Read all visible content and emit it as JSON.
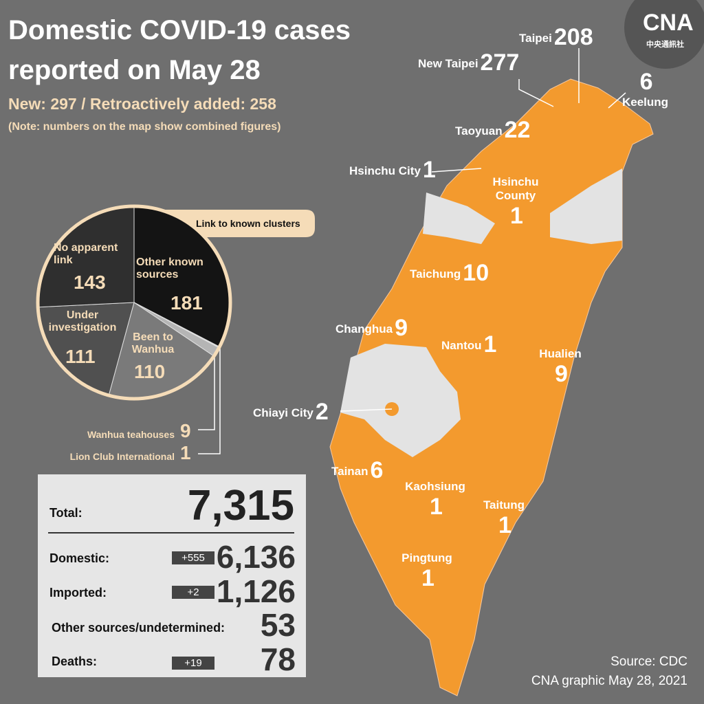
{
  "header": {
    "title_line1": "Domestic COVID-19 cases",
    "title_line2": "reported on May 28",
    "new": "New: 297 / Retroactively added: 258",
    "note": "(Note: numbers on the map show combined figures)"
  },
  "logo": {
    "text": "CNA",
    "subtext": "中央通訊社"
  },
  "chart_data": {
    "type": "pie",
    "annotation": "Link to known clusters",
    "categories": [
      "Other known sources",
      "Lion Club International",
      "Wanhua teahouses",
      "Been to Wanhua",
      "Under investigation",
      "No apparent link"
    ],
    "values": [
      181,
      1,
      9,
      110,
      111,
      143
    ],
    "colors": [
      "#141414",
      "#d9d9d9",
      "#b5b5b5",
      "#7a7a7a",
      "#505050",
      "#2f2f2f"
    ]
  },
  "map": {
    "regions": [
      {
        "name": "Taipei",
        "count": 208
      },
      {
        "name": "New Taipei",
        "count": 277
      },
      {
        "name": "Keelung",
        "count": 6
      },
      {
        "name": "Taoyuan",
        "count": 22
      },
      {
        "name": "Hsinchu City",
        "count": 1
      },
      {
        "name": "Hsinchu County",
        "count": 1
      },
      {
        "name": "Taichung",
        "count": 10
      },
      {
        "name": "Changhua",
        "count": 9
      },
      {
        "name": "Nantou",
        "count": 1
      },
      {
        "name": "Hualien",
        "count": 9
      },
      {
        "name": "Chiayi City",
        "count": 2
      },
      {
        "name": "Tainan",
        "count": 6
      },
      {
        "name": "Kaohsiung",
        "count": 1
      },
      {
        "name": "Taitung",
        "count": 1
      },
      {
        "name": "Pingtung",
        "count": 1
      }
    ]
  },
  "summary": {
    "total": {
      "label": "Total:",
      "value": "7,315"
    },
    "rows": [
      {
        "label": "Domestic:",
        "change": "+555",
        "value": "6,136"
      },
      {
        "label": "Imported:",
        "change": "+2",
        "value": "1,126"
      },
      {
        "label": "Other sources/undetermined:",
        "value": "53"
      },
      {
        "label": "Deaths:",
        "change": "+19",
        "value": "78"
      }
    ]
  },
  "source": {
    "line1": "Source: CDC",
    "line2": "CNA graphic May 28, 2021"
  }
}
